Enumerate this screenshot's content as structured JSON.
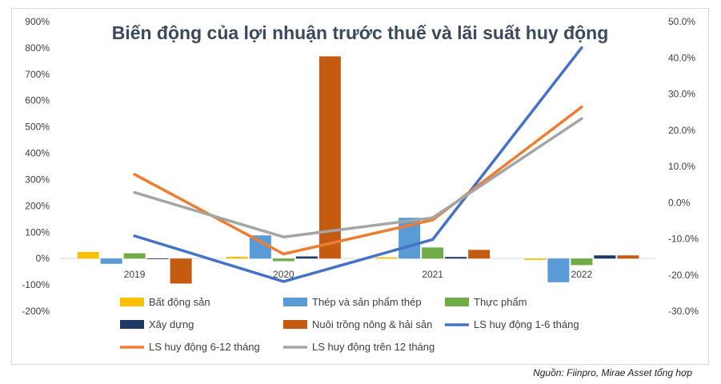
{
  "chart_data": {
    "type": "bar",
    "title": "Biến động của lợi nhuận trước thuế và lãi suất huy động",
    "categories": [
      "2019",
      "2020",
      "2021",
      "2022"
    ],
    "y_left": {
      "ylim": [
        -200,
        900
      ],
      "ticks": [
        -200,
        -100,
        0,
        100,
        200,
        300,
        400,
        500,
        600,
        700,
        800,
        900
      ],
      "tick_labels": [
        "-200%",
        "-100%",
        "0%",
        "100%",
        "200%",
        "300%",
        "400%",
        "500%",
        "600%",
        "700%",
        "800%",
        "900%"
      ]
    },
    "y_right": {
      "ylim": [
        -30,
        50
      ],
      "ticks": [
        -30,
        -20,
        -10,
        0,
        10,
        20,
        30,
        40,
        50
      ],
      "tick_labels": [
        "-30.0%",
        "-20.0%",
        "-10.0%",
        "0.0%",
        "10.0%",
        "20.0%",
        "30.0%",
        "40.0%",
        "50.0%"
      ]
    },
    "bar_series": [
      {
        "name": "Bất động sản",
        "color": "#ffc000",
        "values": [
          25,
          7,
          5,
          -5
        ]
      },
      {
        "name": "Thép và sản phẩm thép",
        "color": "#5b9bd5",
        "values": [
          -20,
          88,
          155,
          -90
        ]
      },
      {
        "name": "Thực phẩm",
        "color": "#70ad47",
        "values": [
          20,
          -10,
          42,
          -25
        ]
      },
      {
        "name": "Xây dựng",
        "color": "#1f3864",
        "values": [
          0,
          8,
          6,
          12
        ]
      },
      {
        "name": "Nuôi trồng nông & hải sản",
        "color": "#c55a11",
        "values": [
          -95,
          768,
          33,
          12
        ]
      }
    ],
    "line_series": [
      {
        "name": "LS huy động 1-6 tháng",
        "color": "#4472c4",
        "values": [
          -9.2,
          -21.8,
          -10.2,
          42.8
        ]
      },
      {
        "name": "LS huy động 6-12 tháng",
        "color": "#ed7d31",
        "values": [
          7.8,
          -14.2,
          -4.8,
          26.4
        ]
      },
      {
        "name": "LS huy động trên 12 tháng",
        "color": "#a5a5a5",
        "values": [
          2.8,
          -9.5,
          -4.2,
          23.2
        ]
      }
    ],
    "legend_placement": "bottom",
    "grid": false
  },
  "source_note": "Nguồn: Fiinpro, Mirae Asset tổng hợp"
}
